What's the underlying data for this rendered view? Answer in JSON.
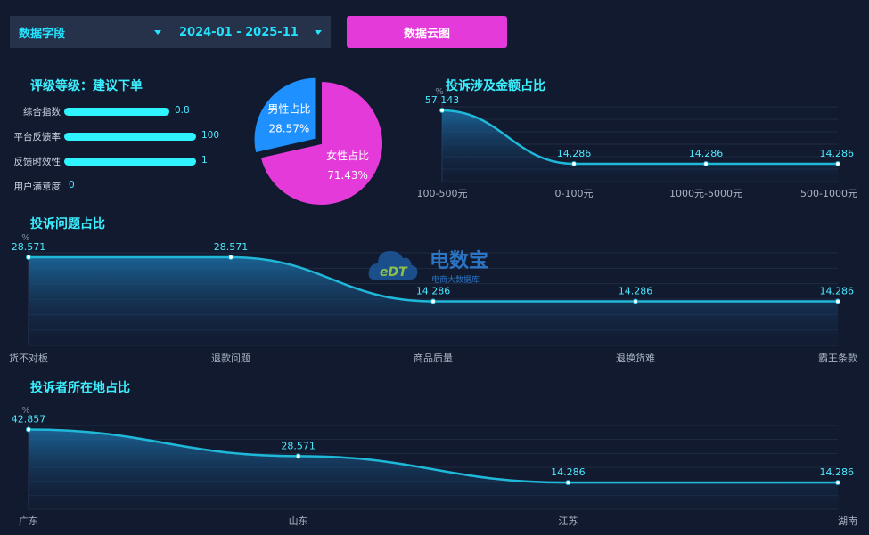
{
  "toolbar": {
    "field_select": "数据字段",
    "date_select": "2024-01 - 2025-11",
    "cloud_button": "数据云图"
  },
  "rating": {
    "title": "评级等级：建议下单",
    "items": [
      {
        "label": "综合指数",
        "value": "0.8",
        "fraction": 0.59
      },
      {
        "label": "平台反馈率",
        "value": "100",
        "fraction": 0.74
      },
      {
        "label": "反馈时效性",
        "value": "1",
        "fraction": 0.74
      },
      {
        "label": "用户满意度",
        "value": "0",
        "fraction": 0
      }
    ]
  },
  "watermark": {
    "brand": "电数宝",
    "sub": "电商大数据库",
    "mark": "eDT"
  },
  "colors": {
    "accent": "#23e3ff",
    "magenta": "#e33ad9",
    "blue": "#1e90ff",
    "line": "#1fb8d8"
  },
  "chart_data": [
    {
      "type": "pie",
      "title": "",
      "slices": [
        {
          "label": "男性占比",
          "value": 28.57,
          "display": "28.57%",
          "color": "#1e90ff"
        },
        {
          "label": "女性占比",
          "value": 71.43,
          "display": "71.43%",
          "color": "#e33ad9"
        }
      ]
    },
    {
      "type": "area",
      "title": "投诉涉及金额占比",
      "ylabel": "%",
      "categories": [
        "100-500元",
        "0-100元",
        "1000元-5000元",
        "500-1000元"
      ],
      "values": [
        57.143,
        14.286,
        14.286,
        14.286
      ],
      "labels": [
        "57.143",
        "14.286",
        "14.286",
        "14.286"
      ],
      "ylim": [
        0,
        60
      ]
    },
    {
      "type": "area",
      "title": "投诉问题占比",
      "ylabel": "%",
      "categories": [
        "货不对板",
        "退款问题",
        "商品质量",
        "退换货难",
        "霸王条款"
      ],
      "values": [
        28.571,
        28.571,
        14.286,
        14.286,
        14.286
      ],
      "labels": [
        "28.571",
        "28.571",
        "14.286",
        "14.286",
        "14.286"
      ],
      "ylim": [
        0,
        30
      ]
    },
    {
      "type": "area",
      "title": "投诉者所在地占比",
      "ylabel": "%",
      "categories": [
        "广东",
        "山东",
        "江苏",
        "湖南"
      ],
      "values": [
        42.857,
        28.571,
        14.286,
        14.286
      ],
      "labels": [
        "42.857",
        "28.571",
        "14.286",
        "14.286"
      ],
      "ylim": [
        0,
        45
      ]
    }
  ]
}
